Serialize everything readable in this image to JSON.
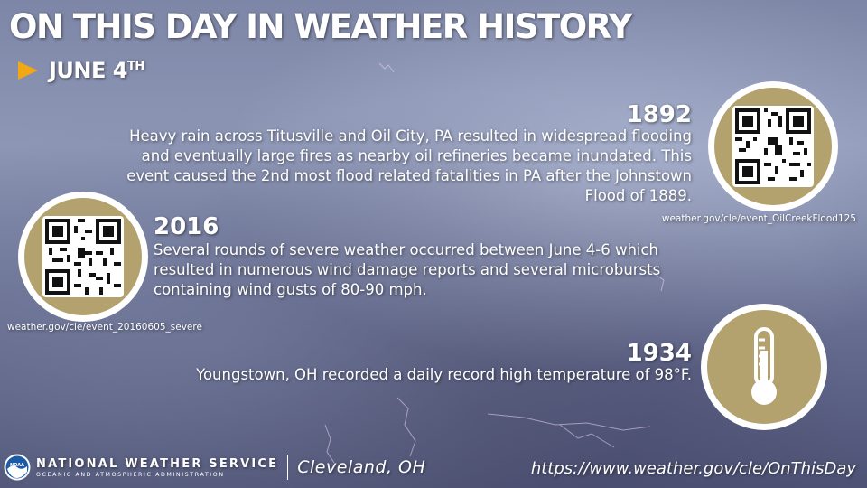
{
  "header": {
    "title": "ON THIS DAY IN WEATHER HISTORY",
    "date_main": "JUNE 4",
    "date_suffix": "TH"
  },
  "events": [
    {
      "year": "1892",
      "text": "Heavy rain across Titusville and Oil City, PA resulted in widespread flooding and eventually large fires as nearby oil refineries became inundated. This event caused the 2nd most flood related fatalities in PA after the Johnstown Flood of 1889.",
      "qr_caption": "weather.gov/cle/event_OilCreekFlood125",
      "icon": "qr-code-icon"
    },
    {
      "year": "2016",
      "text": "Several rounds of severe weather occurred between June 4-6 which resulted in numerous wind damage reports and several microbursts containing wind gusts of 80-90 mph.",
      "qr_caption": "weather.gov/cle/event_20160605_severe",
      "icon": "qr-code-icon"
    },
    {
      "year": "1934",
      "text": "Youngstown, OH recorded a daily record high temperature of 98°F.",
      "icon": "thermometer-icon"
    }
  ],
  "footer": {
    "agency": "NATIONAL WEATHER SERVICE",
    "agency_sub": "OCEANIC AND ATMOSPHERIC ADMINISTRATION",
    "logo_text": "NOAA",
    "office": "Cleveland, OH",
    "url": "https://www.weather.gov/cle/OnThisDay"
  },
  "colors": {
    "accent_arrow": "#f2a814",
    "badge_gold": "#b3a16e"
  }
}
